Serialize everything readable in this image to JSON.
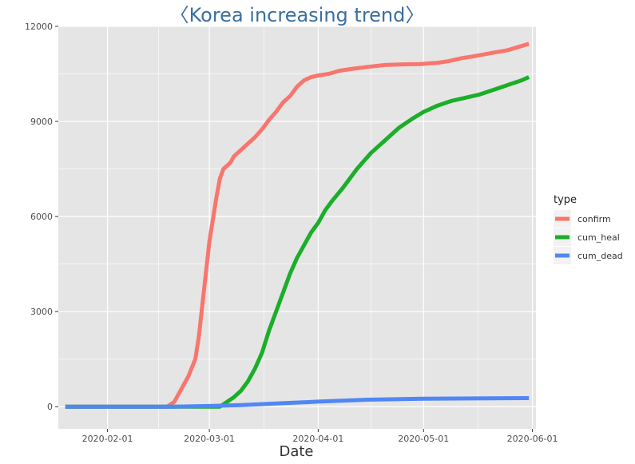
{
  "chart_data": {
    "type": "line",
    "title": "〈Korea increasing trend〉",
    "xlabel": "Date",
    "ylabel": "",
    "x_axis_type": "date",
    "xlim": [
      "2020-01-18",
      "2020-06-02"
    ],
    "ylim": [
      -700,
      12000
    ],
    "x_ticks": [
      "2020-02-01",
      "2020-03-01",
      "2020-04-01",
      "2020-05-01",
      "2020-06-01"
    ],
    "y_ticks": [
      0,
      3000,
      6000,
      9000,
      12000
    ],
    "y_tick_labels": [
      "0",
      "3000",
      "6000",
      "9000",
      "12000"
    ],
    "grid": true,
    "panel_background": "#e5e5e5",
    "grid_color": "#ffffff",
    "legend": {
      "title": "type",
      "placement": "right",
      "entries": [
        {
          "label": "confirm",
          "color": "#F8766D"
        },
        {
          "label": "cum_heal",
          "color": "#1BAE29"
        },
        {
          "label": "cum_dead",
          "color": "#5087F4"
        }
      ]
    },
    "series": [
      {
        "name": "confirm",
        "color": "#F8766D",
        "x": [
          "2020-01-20",
          "2020-02-18",
          "2020-02-20",
          "2020-02-22",
          "2020-02-24",
          "2020-02-26",
          "2020-02-27",
          "2020-02-28",
          "2020-02-29",
          "2020-03-01",
          "2020-03-02",
          "2020-03-03",
          "2020-03-04",
          "2020-03-05",
          "2020-03-06",
          "2020-03-07",
          "2020-03-08",
          "2020-03-10",
          "2020-03-12",
          "2020-03-14",
          "2020-03-16",
          "2020-03-18",
          "2020-03-20",
          "2020-03-22",
          "2020-03-24",
          "2020-03-26",
          "2020-03-28",
          "2020-03-30",
          "2020-04-01",
          "2020-04-04",
          "2020-04-07",
          "2020-04-10",
          "2020-04-15",
          "2020-04-20",
          "2020-04-25",
          "2020-04-30",
          "2020-05-05",
          "2020-05-08",
          "2020-05-12",
          "2020-05-15",
          "2020-05-20",
          "2020-05-25",
          "2020-05-28",
          "2020-05-31"
        ],
        "values": [
          0,
          0,
          150,
          550,
          950,
          1500,
          2200,
          3200,
          4200,
          5200,
          5900,
          6600,
          7200,
          7500,
          7600,
          7700,
          7900,
          8100,
          8300,
          8500,
          8750,
          9050,
          9300,
          9600,
          9800,
          10100,
          10300,
          10400,
          10450,
          10500,
          10600,
          10650,
          10720,
          10780,
          10800,
          10810,
          10850,
          10900,
          11000,
          11050,
          11150,
          11250,
          11350,
          11450
        ]
      },
      {
        "name": "cum_heal",
        "color": "#1BAE29",
        "x": [
          "2020-01-20",
          "2020-03-04",
          "2020-03-06",
          "2020-03-08",
          "2020-03-10",
          "2020-03-12",
          "2020-03-14",
          "2020-03-16",
          "2020-03-18",
          "2020-03-20",
          "2020-03-22",
          "2020-03-24",
          "2020-03-26",
          "2020-03-28",
          "2020-03-30",
          "2020-04-01",
          "2020-04-03",
          "2020-04-05",
          "2020-04-08",
          "2020-04-12",
          "2020-04-16",
          "2020-04-20",
          "2020-04-24",
          "2020-04-28",
          "2020-05-01",
          "2020-05-05",
          "2020-05-09",
          "2020-05-13",
          "2020-05-17",
          "2020-05-21",
          "2020-05-25",
          "2020-05-29",
          "2020-05-31"
        ],
        "values": [
          0,
          0,
          150,
          300,
          500,
          800,
          1200,
          1700,
          2400,
          3000,
          3600,
          4200,
          4700,
          5100,
          5500,
          5800,
          6200,
          6500,
          6900,
          7500,
          8000,
          8400,
          8800,
          9100,
          9300,
          9500,
          9650,
          9750,
          9850,
          10000,
          10150,
          10300,
          10400
        ]
      },
      {
        "name": "cum_dead",
        "color": "#5087F4",
        "x": [
          "2020-01-20",
          "2020-02-20",
          "2020-03-01",
          "2020-03-10",
          "2020-03-20",
          "2020-04-01",
          "2020-04-15",
          "2020-05-01",
          "2020-05-15",
          "2020-05-31"
        ],
        "values": [
          0,
          0,
          20,
          50,
          100,
          160,
          220,
          250,
          260,
          270
        ]
      }
    ]
  }
}
